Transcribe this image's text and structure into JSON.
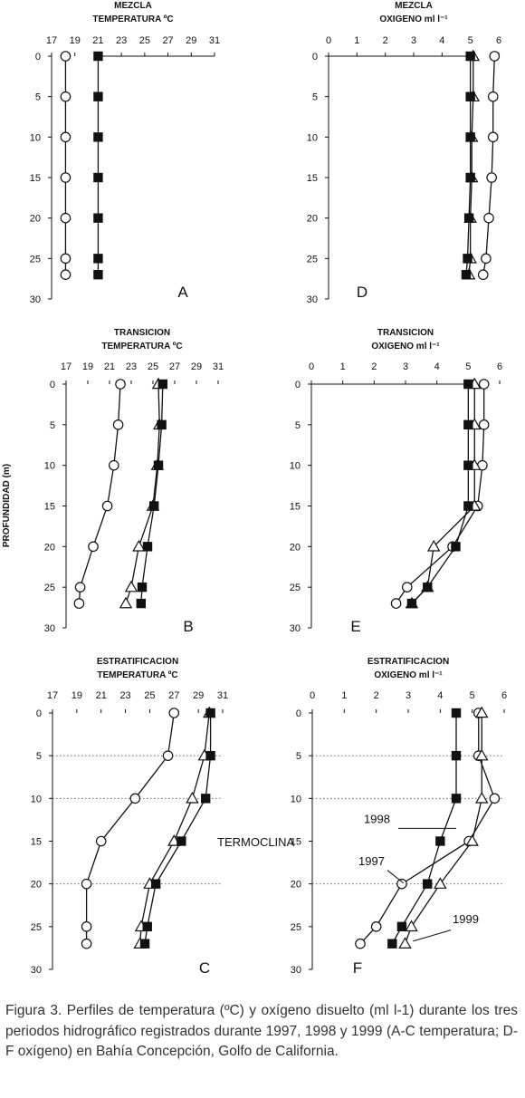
{
  "figure": {
    "ylabel": "PROFUNDIDAD (m)",
    "caption": "Figura 3. Perfiles de temperatura (ºC) y oxígeno disuelto (ml l-1) durante los tres periodos hidrográfico registrados durante 1997, 1998 y 1999 (A-C temperatura; D-F oxígeno) en Bahía Concepción, Golfo de California."
  },
  "chart_data": [
    {
      "panel": "A",
      "type": "line",
      "title": [
        "MEZCLA",
        "TEMPERATURA ºC"
      ],
      "xlim": [
        17,
        31
      ],
      "xticks": [
        17,
        19,
        21,
        23,
        25,
        27,
        29,
        31
      ],
      "ylim": [
        30,
        0
      ],
      "yticks": [
        0,
        5,
        10,
        15,
        20,
        25,
        30
      ],
      "depths": [
        0,
        5,
        10,
        15,
        20,
        25,
        27
      ],
      "series": [
        {
          "marker": "circle",
          "values": [
            18.2,
            18.2,
            18.2,
            18.2,
            18.2,
            18.2,
            18.2
          ]
        },
        {
          "marker": "square",
          "values": [
            21.0,
            21.0,
            21.0,
            21.0,
            21.0,
            21.0,
            21.0
          ]
        }
      ],
      "extra_line": {
        "from": [
          21.0,
          0
        ],
        "to": [
          31.0,
          0
        ]
      },
      "letter": "A"
    },
    {
      "panel": "D",
      "type": "line",
      "title": [
        "MEZCLA",
        "OXIGENO ml l⁻¹"
      ],
      "xlim": [
        0,
        6
      ],
      "xticks": [
        0,
        1,
        2,
        3,
        4,
        5,
        6
      ],
      "ylim": [
        30,
        0
      ],
      "yticks": [
        0,
        5,
        10,
        15,
        20,
        25,
        30
      ],
      "depths": [
        0,
        5,
        10,
        15,
        20,
        25,
        27
      ],
      "series": [
        {
          "marker": "circle",
          "values": [
            5.85,
            5.8,
            5.8,
            5.75,
            5.65,
            5.55,
            5.45
          ]
        },
        {
          "marker": "triangle",
          "values": [
            5.1,
            5.1,
            5.05,
            5.05,
            5.0,
            5.0,
            4.95
          ]
        },
        {
          "marker": "square",
          "values": [
            5.0,
            5.0,
            5.0,
            5.0,
            4.95,
            4.9,
            4.85
          ]
        }
      ],
      "extra_line": {
        "from": [
          0,
          0
        ],
        "to": [
          5.0,
          0
        ]
      },
      "letter": "D"
    },
    {
      "panel": "B",
      "type": "line",
      "title": [
        "TRANSICION",
        "TEMPERATURA ºC"
      ],
      "xlim": [
        17,
        31
      ],
      "xticks": [
        17,
        19,
        21,
        23,
        25,
        27,
        29,
        31
      ],
      "ylim": [
        30,
        0
      ],
      "yticks": [
        0,
        5,
        10,
        15,
        20,
        25,
        30
      ],
      "depths": [
        0,
        5,
        10,
        15,
        20,
        25,
        27
      ],
      "series": [
        {
          "marker": "circle",
          "values": [
            22.0,
            21.8,
            21.4,
            20.8,
            19.5,
            18.3,
            18.2
          ]
        },
        {
          "marker": "triangle",
          "values": [
            25.5,
            25.6,
            25.4,
            25.0,
            23.7,
            23.0,
            22.5
          ]
        },
        {
          "marker": "square",
          "values": [
            25.9,
            25.8,
            25.5,
            25.1,
            24.5,
            24.0,
            23.9
          ]
        }
      ],
      "letter": "B"
    },
    {
      "panel": "E",
      "type": "line",
      "title": [
        "TRANSICION",
        "OXIGENO ml l⁻¹"
      ],
      "xlim": [
        0,
        6
      ],
      "xticks": [
        0,
        1,
        2,
        3,
        4,
        5,
        6
      ],
      "ylim": [
        30,
        0
      ],
      "yticks": [
        0,
        5,
        10,
        15,
        20,
        25,
        30
      ],
      "depths": [
        0,
        5,
        10,
        15,
        20,
        25,
        27
      ],
      "series": [
        {
          "marker": "circle",
          "values": [
            5.5,
            5.5,
            5.45,
            5.3,
            4.5,
            3.05,
            2.7
          ]
        },
        {
          "marker": "triangle",
          "values": [
            5.2,
            5.2,
            5.2,
            5.2,
            3.9,
            3.7,
            3.2
          ]
        },
        {
          "marker": "square",
          "values": [
            5.0,
            5.0,
            5.0,
            5.0,
            4.6,
            3.7,
            3.2
          ]
        }
      ],
      "extra_line": {
        "from": [
          0,
          0
        ],
        "to": [
          5.0,
          0
        ]
      },
      "letter": "E"
    },
    {
      "panel": "C",
      "type": "line",
      "title": [
        "ESTRATIFICACION",
        "TEMPERATURA ºC"
      ],
      "xlim": [
        17,
        31
      ],
      "xticks": [
        17,
        19,
        21,
        23,
        25,
        27,
        29,
        31
      ],
      "ylim": [
        30,
        0
      ],
      "yticks": [
        0,
        5,
        10,
        15,
        20,
        25,
        30
      ],
      "depths": [
        0,
        5,
        10,
        15,
        20,
        25,
        27
      ],
      "series": [
        {
          "marker": "circle",
          "values": [
            27.0,
            26.5,
            23.8,
            21.0,
            19.8,
            19.8,
            19.8
          ]
        },
        {
          "marker": "triangle",
          "values": [
            29.9,
            29.5,
            28.5,
            27.0,
            25.0,
            24.3,
            24.2
          ]
        },
        {
          "marker": "square",
          "values": [
            30.0,
            30.0,
            29.6,
            27.6,
            25.5,
            24.8,
            24.6
          ]
        }
      ],
      "gridlines_at": [
        5,
        10,
        20
      ],
      "annotation": "TERMOCLINA",
      "letter": "C"
    },
    {
      "panel": "F",
      "type": "line",
      "title": [
        "ESTRATIFICACION",
        "OXIGENO ml l⁻¹"
      ],
      "xlim": [
        0,
        6
      ],
      "xticks": [
        0,
        1,
        2,
        3,
        4,
        5,
        6
      ],
      "ylim": [
        30,
        0
      ],
      "yticks": [
        0,
        5,
        10,
        15,
        20,
        25,
        30
      ],
      "depths": [
        0,
        5,
        10,
        15,
        20,
        25,
        27
      ],
      "series": [
        {
          "marker": "circle",
          "name": "1997",
          "values": [
            5.2,
            5.2,
            5.7,
            4.9,
            2.8,
            2.0,
            1.5
          ]
        },
        {
          "marker": "triangle",
          "name": "1999",
          "values": [
            5.3,
            5.3,
            5.3,
            5.0,
            4.0,
            3.1,
            2.9
          ]
        },
        {
          "marker": "square",
          "name": "1998",
          "values": [
            4.5,
            4.5,
            4.5,
            4.0,
            3.6,
            2.8,
            2.5
          ]
        }
      ],
      "gridlines_at": [
        5,
        10,
        20
      ],
      "year_labels": [
        "1998",
        "1997",
        "1999"
      ],
      "letter": "F"
    }
  ]
}
